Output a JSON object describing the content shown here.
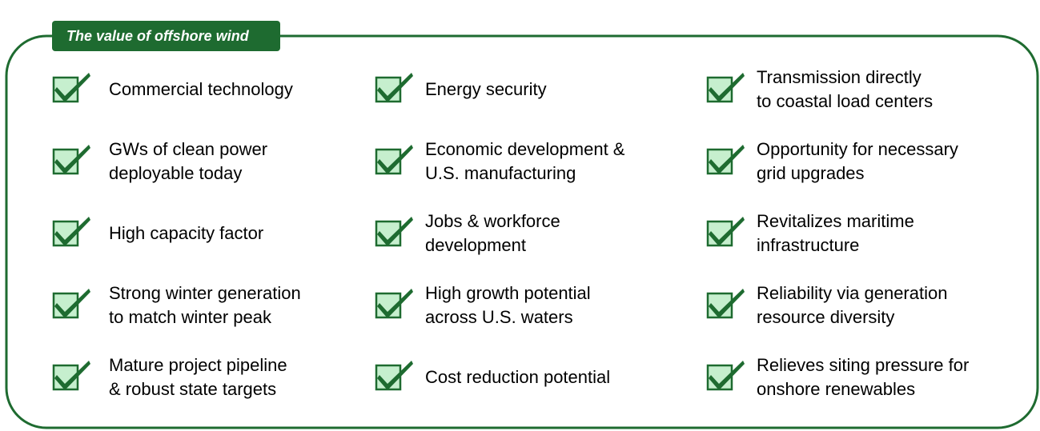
{
  "title": "The value of offshore wind",
  "columns": [
    {
      "items": [
        {
          "lines": [
            "Commercial technology"
          ]
        },
        {
          "lines": [
            "GWs of clean power",
            "deployable today"
          ]
        },
        {
          "lines": [
            "High capacity factor"
          ]
        },
        {
          "lines": [
            "Strong winter generation",
            "to match winter peak"
          ]
        },
        {
          "lines": [
            "Mature project pipeline",
            "& robust state targets"
          ]
        }
      ]
    },
    {
      "items": [
        {
          "lines": [
            "Energy security"
          ]
        },
        {
          "lines": [
            "Economic development &",
            "U.S. manufacturing"
          ]
        },
        {
          "lines": [
            "Jobs & workforce",
            "development"
          ]
        },
        {
          "lines": [
            "High growth potential",
            "across U.S. waters"
          ]
        },
        {
          "lines": [
            "Cost reduction potential"
          ]
        }
      ]
    },
    {
      "items": [
        {
          "lines": [
            "Transmission directly",
            "to coastal load centers"
          ]
        },
        {
          "lines": [
            "Opportunity for necessary",
            "grid upgrades"
          ]
        },
        {
          "lines": [
            "Revitalizes maritime",
            "infrastructure"
          ]
        },
        {
          "lines": [
            "Reliability via generation",
            "resource diversity"
          ]
        },
        {
          "lines": [
            "Relieves siting pressure for",
            "onshore renewables"
          ]
        }
      ]
    }
  ]
}
